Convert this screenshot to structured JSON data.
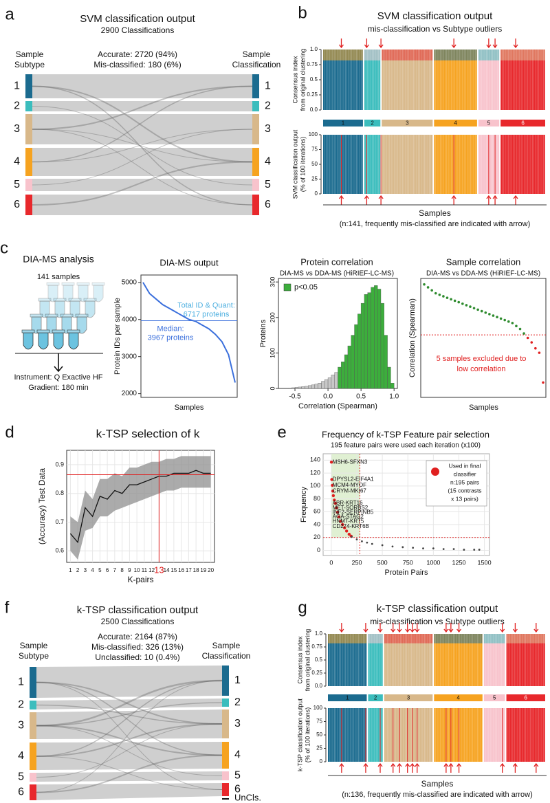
{
  "a": {
    "label": "a",
    "title": "SVM classification output",
    "subtitle": "2900 Classifications",
    "left_header": [
      "Sample",
      "Subtype"
    ],
    "right_header": [
      "Sample",
      "Classification"
    ],
    "stats": [
      "Accurate: 2720 (94%)",
      "Mis-classified: 180 (6%)"
    ],
    "subtypes": [
      "1",
      "2",
      "3",
      "4",
      "5",
      "6"
    ],
    "colors": [
      "#1b6b8f",
      "#3bbdbd",
      "#d8b88a",
      "#f6a320",
      "#f8c3cc",
      "#e8282c"
    ]
  },
  "b": {
    "label": "b",
    "title": "SVM classification output",
    "subtitle": "mis-classification vs Subtype outliers",
    "top_ylabel": [
      "Consensus index",
      "from original clustering"
    ],
    "top_yticks": [
      {
        "value": 0,
        "label": "0.0"
      },
      0.25,
      0.5,
      0.75,
      {
        "value": 1,
        "label": "1.0"
      }
    ],
    "bottom_ylabel": [
      "SVM classification output",
      "(% of 100 iterations)"
    ],
    "bottom_yticks": [
      0,
      25,
      50,
      75,
      100
    ],
    "groups": [
      26,
      11,
      33,
      28,
      14,
      29
    ],
    "arrow_samples": [
      11,
      27,
      36,
      82,
      104,
      108,
      121
    ],
    "xlabel": "Samples",
    "note": "(n:141, frequently mis-classified are indicated with arrow)"
  },
  "c": {
    "label": "c",
    "workflow": {
      "title": "DIA-MS analysis",
      "samples": "141 samples",
      "instrument": "Instrument: Q Exactive HF",
      "gradient": "Gradient: 180 min"
    },
    "output": {
      "type": "line",
      "title": "DIA-MS output",
      "ylabel": "Protein IDs per sample",
      "xlabel": "Samples",
      "values": [
        5000,
        4700,
        4550,
        4400,
        4300,
        4200,
        4100,
        4000,
        3950,
        3850,
        3750,
        3600,
        3400,
        3050,
        2300
      ],
      "color": "#3a6fdc",
      "ylim": [
        1900,
        5200
      ],
      "yticks": [
        2000,
        3000,
        4000,
        5000
      ],
      "median": 3967,
      "total_label": [
        "Total ID & Quant:",
        "6717 proteins"
      ],
      "median_label": [
        "Median:",
        "3967 proteins"
      ]
    },
    "protein_correlation": {
      "type": "histogram",
      "title": "Protein correlation",
      "subtitle": "DIA-MS vs DDA-MS (HiRIEF-LC-MS)",
      "ylabel": "Proteins",
      "xlabel": "Correlation (Spearman)",
      "bins": [
        -0.6,
        -0.55,
        -0.5,
        -0.45,
        -0.4,
        -0.35,
        -0.3,
        -0.25,
        -0.2,
        -0.15,
        -0.1,
        -0.05,
        0,
        0.05,
        0.1,
        0.15,
        0.2,
        0.25,
        0.3,
        0.35,
        0.4,
        0.45,
        0.5,
        0.55,
        0.6,
        0.65,
        0.7,
        0.75,
        0.8,
        0.85,
        0.9,
        0.95,
        1
      ],
      "values": [
        1,
        2,
        3,
        4,
        5,
        6,
        8,
        10,
        12,
        15,
        20,
        25,
        30,
        38,
        45,
        60,
        75,
        95,
        120,
        150,
        180,
        210,
        240,
        265,
        270,
        285,
        290,
        280,
        240,
        150,
        60,
        15
      ],
      "colors": [
        "#c8c8c8",
        "#c8c8c8",
        "#c8c8c8",
        "#c8c8c8",
        "#c8c8c8",
        "#c8c8c8",
        "#c8c8c8",
        "#c8c8c8",
        "#c8c8c8",
        "#c8c8c8",
        "#c8c8c8",
        "#c8c8c8",
        "#c8c8c8",
        "#c8c8c8",
        "#c8c8c8",
        "#3cae3c",
        "#3cae3c",
        "#3cae3c",
        "#3cae3c",
        "#3cae3c",
        "#3cae3c",
        "#3cae3c",
        "#3cae3c",
        "#3cae3c",
        "#3cae3c",
        "#3cae3c",
        "#3cae3c",
        "#3cae3c",
        "#3cae3c",
        "#3cae3c",
        "#3cae3c",
        "#3cae3c"
      ],
      "legend": {
        "label": "p<0.05",
        "color": "#3cae3c"
      },
      "xlim": [
        -0.75,
        1.05
      ],
      "xticks": [
        -0.5,
        {
          "value": 0,
          "label": "0.0"
        },
        0.5,
        {
          "value": 1,
          "label": "1.0"
        }
      ],
      "ylim": [
        0,
        310
      ],
      "yticks": [
        0,
        100,
        200,
        300
      ]
    },
    "sample_correlation": {
      "type": "scatter",
      "title": "Sample correlation",
      "subtitle": "DIA-MS vs DDA-MS (HiRIEF-LC-MS)",
      "ylabel": "Correlation (Spearman)",
      "xlabel": "Samples",
      "values": [
        0.76,
        0.74,
        0.72,
        0.7,
        0.69,
        0.68,
        0.67,
        0.66,
        0.65,
        0.64,
        0.63,
        0.62,
        0.61,
        0.6,
        0.59,
        0.58,
        0.57,
        0.56,
        0.55,
        0.54,
        0.53,
        0.52,
        0.51,
        0.5,
        0.48,
        0.46,
        0.43,
        0.4,
        0.37,
        0.33,
        0.3,
        0.1
      ],
      "color": "#2e8b2e",
      "excluded_color": "#e02020",
      "ylim": [
        0,
        0.8
      ],
      "threshold": 0.42,
      "note": [
        "5 samples excluded due to",
        "low correlation"
      ]
    }
  },
  "d": {
    "label": "d",
    "type": "line",
    "title": "k-TSP selection of k",
    "ylabel": "(Accuracy) Test Data",
    "xlabel": "K-pairs",
    "x": [
      1,
      2,
      3,
      4,
      5,
      6,
      7,
      8,
      9,
      10,
      11,
      12,
      13,
      14,
      15,
      16,
      17,
      18,
      19,
      20
    ],
    "values": [
      0.66,
      0.63,
      0.75,
      0.72,
      0.79,
      0.78,
      0.81,
      0.8,
      0.83,
      0.83,
      0.84,
      0.85,
      0.86,
      0.86,
      0.87,
      0.87,
      0.87,
      0.88,
      0.87,
      0.87
    ],
    "lower": [
      0.6,
      0.57,
      0.67,
      0.68,
      0.72,
      0.72,
      0.74,
      0.75,
      0.76,
      0.77,
      0.78,
      0.79,
      0.8,
      0.81,
      0.81,
      0.82,
      0.82,
      0.82,
      0.82,
      0.82
    ],
    "upper": [
      0.72,
      0.7,
      0.81,
      0.78,
      0.85,
      0.85,
      0.87,
      0.86,
      0.89,
      0.89,
      0.9,
      0.91,
      0.91,
      0.92,
      0.92,
      0.93,
      0.93,
      0.93,
      0.93,
      0.93
    ],
    "xlim": [
      0.5,
      20.5
    ],
    "xticks": [
      1,
      2,
      3,
      4,
      5,
      6,
      7,
      8,
      9,
      10,
      11,
      12,
      13,
      14,
      15,
      16,
      17,
      18,
      19,
      20
    ],
    "ylim": [
      0.56,
      0.95
    ],
    "yticks": [
      0.6,
      0.7,
      0.8,
      0.9
    ],
    "grid": true,
    "selected_k": 13,
    "selected_accuracy": 0.865
  },
  "e": {
    "label": "e",
    "type": "scatter",
    "title": "Frequency of k-TSP Feature pair selection",
    "subtitle": "195 feature pairs were used each iteration (x100)",
    "ylabel": "Frequency",
    "xlabel": "Protein Pairs",
    "series": [
      {
        "color": "#e02020",
        "x": [
          1,
          5,
          10,
          15,
          20,
          30,
          40,
          50,
          60,
          75,
          90,
          110,
          130,
          150,
          175,
          195
        ],
        "values": [
          137,
          110,
          101,
          92,
          85,
          78,
          73,
          66,
          59,
          52,
          45,
          40,
          35,
          30,
          25,
          22
        ]
      },
      {
        "color": "#444444",
        "x": [
          200,
          250,
          300,
          350,
          400,
          500,
          600,
          700,
          800,
          900,
          1000,
          1100,
          1200,
          1300,
          1400,
          1450
        ],
        "values": [
          21,
          17,
          14,
          12,
          10,
          8,
          6,
          5,
          4,
          3,
          3,
          2,
          2,
          1,
          1,
          1
        ]
      }
    ],
    "labels": [
      "MSH6-SFXN3",
      "DPYSL2-EIF4A1",
      "MCM4-MYOF",
      "CRYM-MKI67",
      "ABR-KRT16",
      "MET-SORBS2",
      "INF2-SERPINB5",
      "AGA-STAG2",
      "HNMT-KRT5",
      "CD274-KRT6B"
    ],
    "legend": [
      "Used in final",
      "classifier",
      "n:195 pairs",
      "(15 contrasts",
      "x 13 pairs)"
    ],
    "xlim": [
      -80,
      1550
    ],
    "xticks": [
      0,
      250,
      500,
      750,
      1000,
      1250,
      1500
    ],
    "ylim": [
      -8,
      150
    ],
    "yticks": [
      0,
      20,
      40,
      60,
      80,
      100,
      120,
      140
    ],
    "grid": true,
    "cutoff_x": 280,
    "cutoff_y": 20
  },
  "f": {
    "label": "f",
    "title": "k-TSP classification output",
    "subtitle": "2500 Classifications",
    "stats": [
      "Accurate: 2164 (87%)",
      "Mis-classified: 326 (13%)",
      "Unclassified: 10 (0.4%)"
    ],
    "left_header": [
      "Sample",
      "Subtype"
    ],
    "right_header": [
      "Sample",
      "Classification"
    ],
    "unclassified": "UnCls."
  },
  "g": {
    "label": "g",
    "title": "k-TSP classification output",
    "subtitle": "mis-classification vs Subtype outliers",
    "top_ylabel": [
      "Consensus index",
      "from original clustering"
    ],
    "top_yticks": [
      {
        "value": 0,
        "label": "0.0"
      },
      0.25,
      0.5,
      0.75,
      {
        "value": 1,
        "label": "1.0"
      }
    ],
    "bottom_ylabel": [
      "k-TSP classification output",
      "(% of 100 iterations)"
    ],
    "bottom_yticks": [
      0,
      25,
      50,
      75,
      100
    ],
    "groups": [
      25,
      10,
      31,
      31,
      14,
      25
    ],
    "arrow_samples": [
      8,
      23,
      32,
      40,
      44,
      49,
      52,
      55,
      73,
      76,
      81,
      108,
      116,
      129
    ],
    "xlabel": "Samples",
    "note": "(n:136, frequently mis-classified are indicated with arrow)"
  }
}
